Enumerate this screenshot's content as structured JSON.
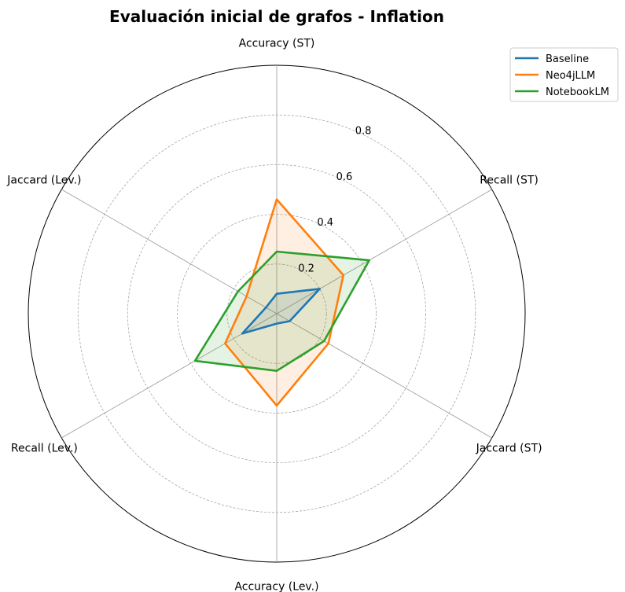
{
  "chart_data": {
    "type": "radar",
    "title": "Evaluación inicial de grafos - Inflation",
    "axes": [
      "Accuracy (ST)",
      "Recall (ST)",
      "Jaccard (ST)",
      "Accuracy (Lev.)",
      "Recall (Lev.)",
      "Jaccard (Lev.)"
    ],
    "rlim": [
      0,
      1.0
    ],
    "rticks": [
      0.2,
      0.4,
      0.6,
      0.8
    ],
    "rtick_labels": [
      "0.2",
      "0.4",
      "0.6",
      "0.8"
    ],
    "grid": true,
    "legend_position": "top-right",
    "series": [
      {
        "name": "Baseline",
        "color": "#1f77b4",
        "values": [
          0.08,
          0.2,
          0.06,
          0.04,
          0.16,
          0.05
        ]
      },
      {
        "name": "Neo4jLLM",
        "color": "#ff7f0e",
        "values": [
          0.46,
          0.31,
          0.24,
          0.37,
          0.24,
          0.14
        ]
      },
      {
        "name": "NotebookLM",
        "color": "#2ca02c",
        "values": [
          0.25,
          0.43,
          0.22,
          0.23,
          0.38,
          0.18
        ]
      }
    ]
  }
}
